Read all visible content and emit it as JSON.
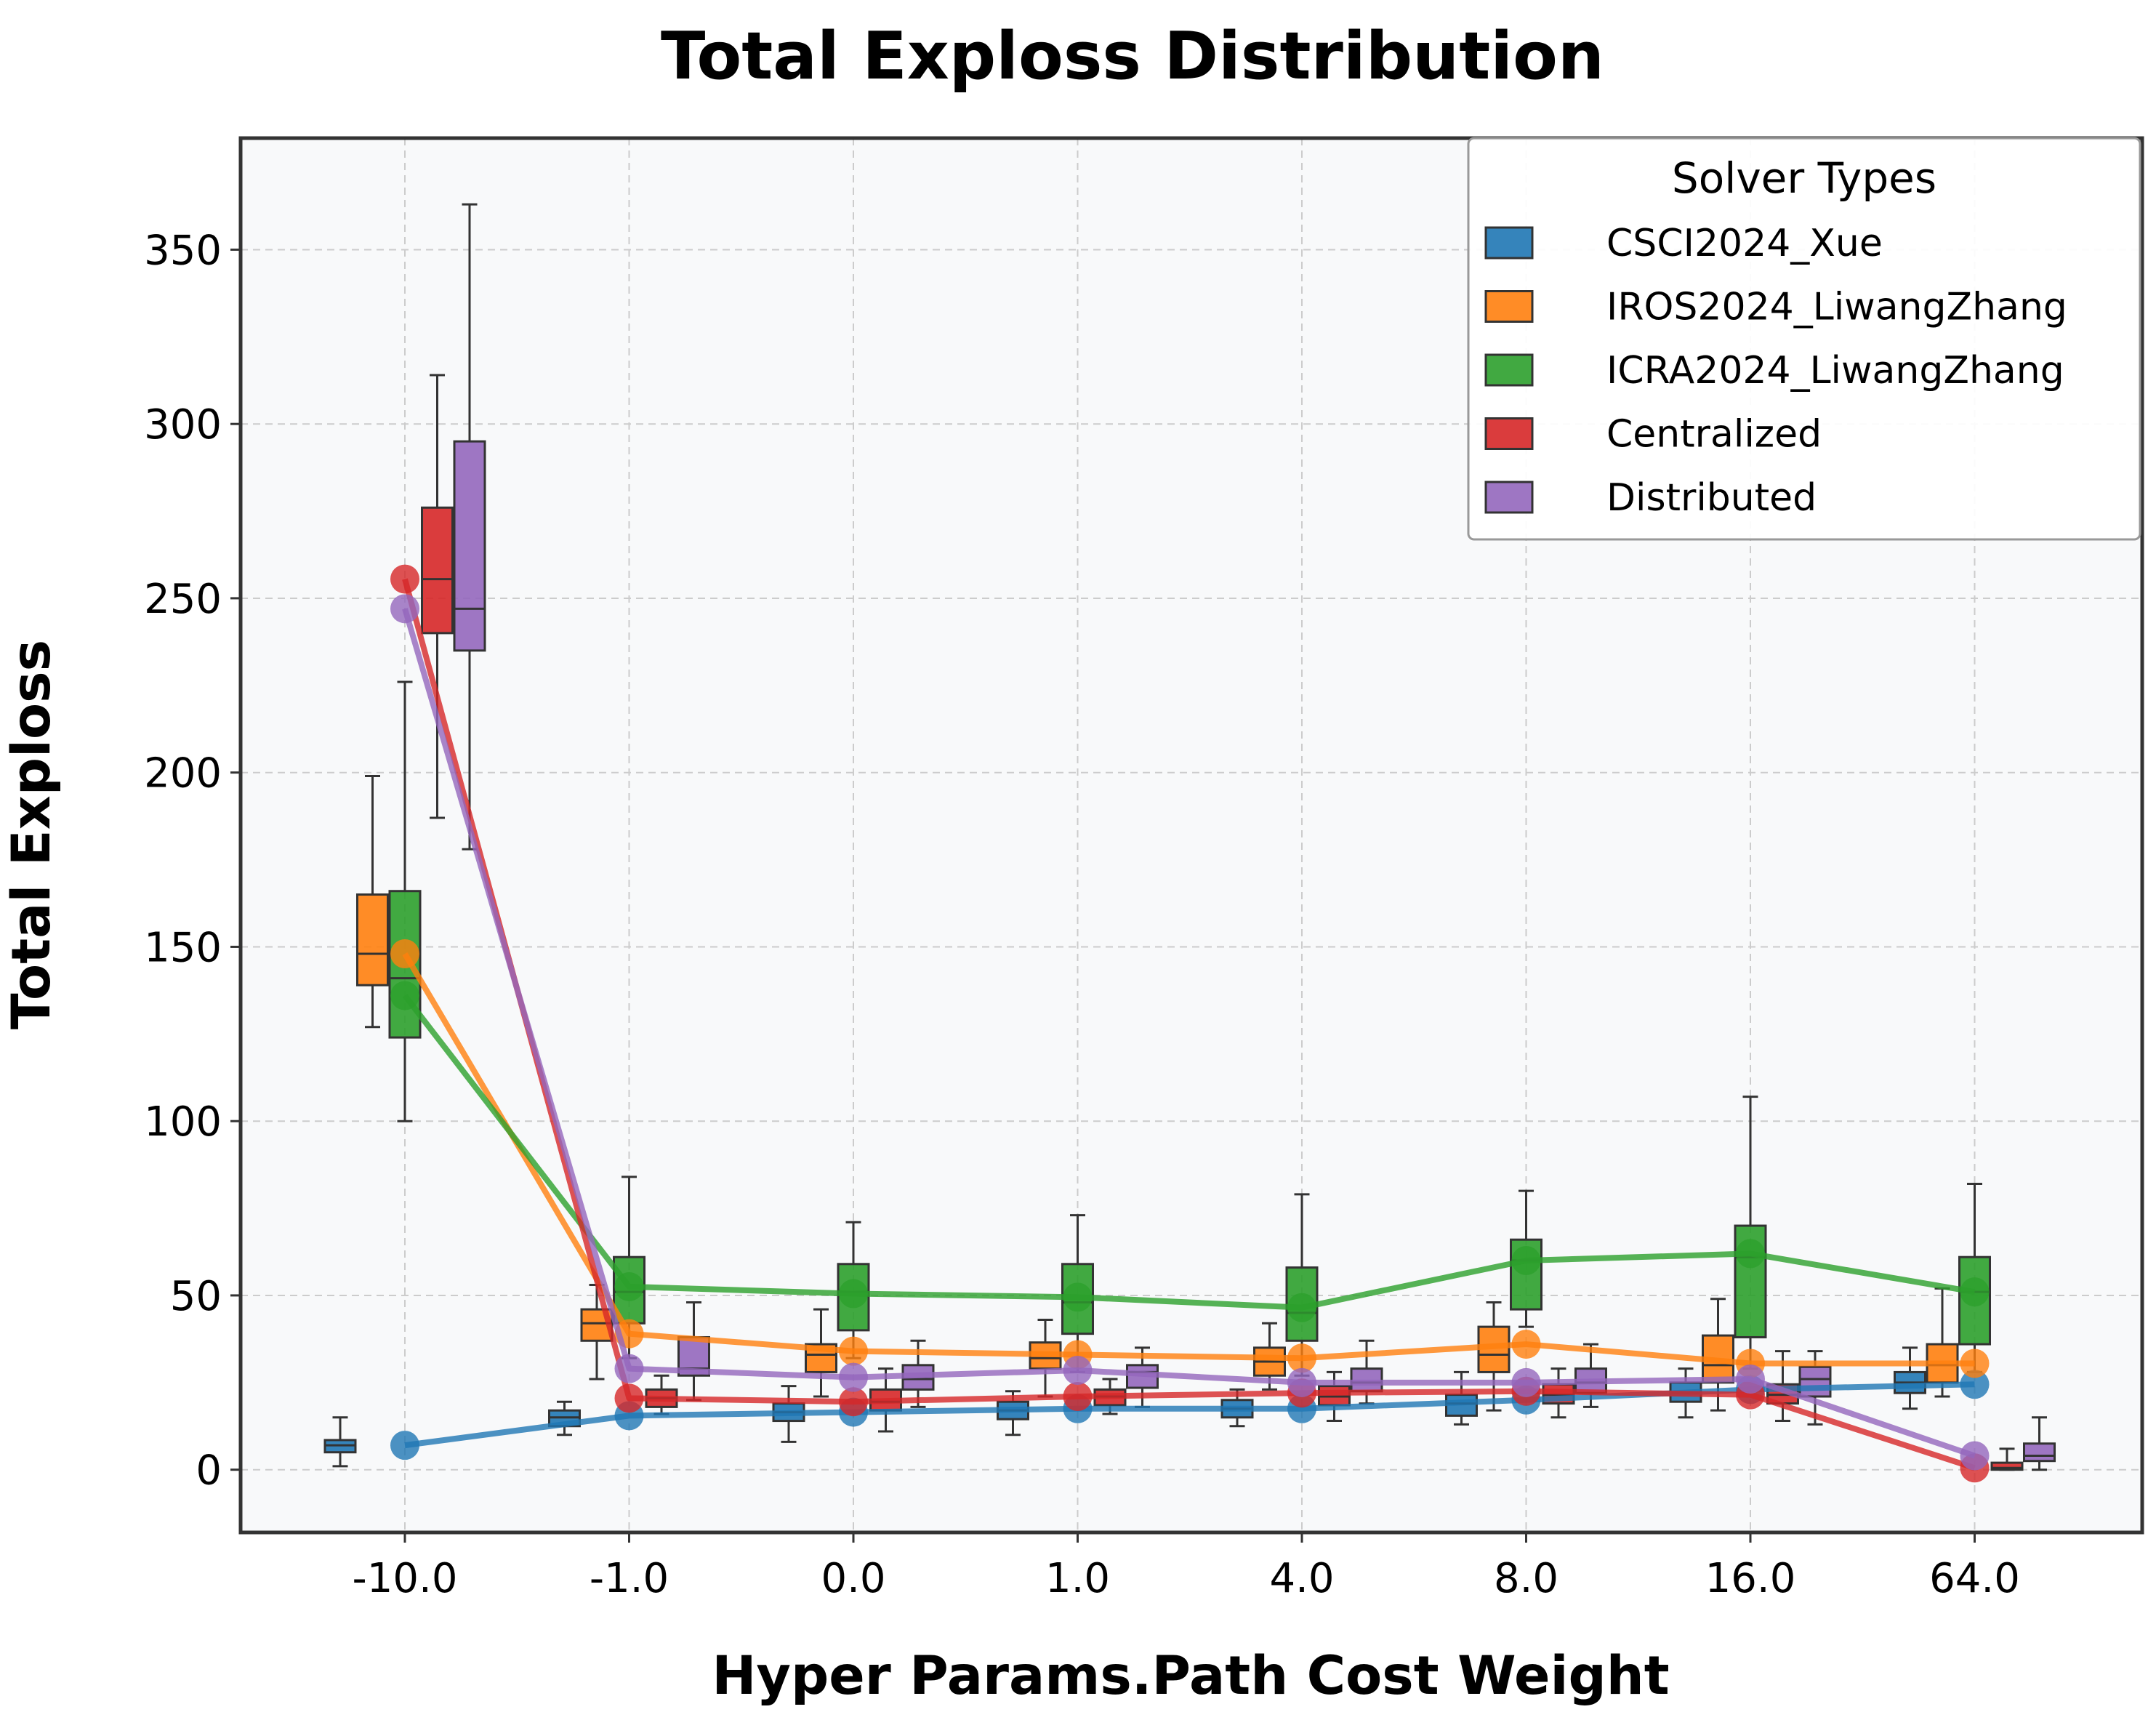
{
  "chart_data": {
    "type": "box",
    "title": "Total Exploss Distribution",
    "xlabel": "Hyper Params.Path Cost Weight",
    "ylabel": "Total Exploss",
    "categories": [
      "-10.0",
      "-1.0",
      "0.0",
      "1.0",
      "4.0",
      "8.0",
      "16.0",
      "64.0"
    ],
    "ylim": [
      -18,
      382
    ],
    "yticks": [
      "0",
      "50",
      "100",
      "150",
      "200",
      "250",
      "300",
      "350"
    ],
    "grid": true,
    "legend": {
      "title": "Solver Types",
      "position": "top-right"
    },
    "series": [
      {
        "name": "CSCI2024_Xue",
        "color": "#1f77b4",
        "means": [
          7,
          15.5,
          16.5,
          17.5,
          17.5,
          20,
          23,
          24.5
        ],
        "boxes": [
          [
            1,
            5,
            7,
            8.5,
            15
          ],
          [
            10,
            12.5,
            15,
            17,
            19.5
          ],
          [
            8,
            14,
            16.5,
            19,
            24
          ],
          [
            10,
            14.5,
            17,
            19.5,
            22.5
          ],
          [
            12.5,
            15,
            17.5,
            20,
            23
          ],
          [
            13,
            15.5,
            19,
            21.5,
            28
          ],
          [
            15,
            19.5,
            22,
            25,
            29
          ],
          [
            17.5,
            22,
            25,
            28,
            35
          ]
        ]
      },
      {
        "name": "IROS2024_LiwangZhang",
        "color": "#ff7f0e",
        "means": [
          148,
          39,
          34,
          33,
          32,
          36,
          30.5,
          30.5
        ],
        "boxes": [
          [
            127,
            139,
            148,
            165,
            199
          ],
          [
            26,
            37,
            42,
            46,
            53
          ],
          [
            21,
            28,
            33,
            36,
            46
          ],
          [
            21,
            29,
            32,
            36.5,
            43
          ],
          [
            23,
            27,
            31,
            35,
            42
          ],
          [
            17,
            28,
            33,
            41,
            48
          ],
          [
            17,
            25,
            30,
            38.5,
            49
          ],
          [
            21,
            25,
            30,
            36,
            52
          ]
        ]
      },
      {
        "name": "ICRA2024_LiwangZhang",
        "color": "#2ca02c",
        "means": [
          136,
          52.5,
          50.5,
          49.5,
          46.5,
          60,
          62,
          51
        ],
        "boxes": [
          [
            100,
            124,
            141,
            166,
            226
          ],
          [
            32,
            42,
            51,
            61,
            84
          ],
          [
            32,
            40,
            51,
            59,
            71
          ],
          [
            28,
            39,
            48,
            59,
            73
          ],
          [
            27,
            37,
            45,
            58,
            79
          ],
          [
            41,
            46,
            60,
            66,
            80
          ],
          [
            29,
            38,
            61,
            70,
            107
          ],
          [
            28,
            36,
            51,
            61,
            82
          ]
        ]
      },
      {
        "name": "Centralized",
        "color": "#d62728",
        "means": [
          255.5,
          20.5,
          19.5,
          21,
          22,
          22.5,
          21.5,
          0.5
        ],
        "boxes": [
          [
            187,
            240,
            255.5,
            276,
            314
          ],
          [
            16,
            18,
            20.5,
            23,
            27
          ],
          [
            11,
            17,
            19.5,
            23,
            29
          ],
          [
            16,
            18.5,
            21,
            23,
            26
          ],
          [
            14,
            18.5,
            21,
            24,
            28
          ],
          [
            15,
            19,
            21.5,
            24.5,
            29
          ],
          [
            14,
            19,
            21.5,
            24.5,
            34
          ],
          [
            0,
            0,
            0.5,
            2,
            6
          ]
        ]
      },
      {
        "name": "Distributed",
        "color": "#9467bd",
        "means": [
          247,
          29,
          26.5,
          28.5,
          25,
          25,
          26,
          4
        ],
        "boxes": [
          [
            178,
            235,
            247,
            295,
            363
          ],
          [
            20,
            27,
            29,
            38,
            48
          ],
          [
            18,
            23,
            26,
            30,
            37
          ],
          [
            18,
            23.5,
            28,
            30,
            35
          ],
          [
            19,
            22.5,
            25,
            29,
            37
          ],
          [
            18,
            22,
            25,
            29,
            36
          ],
          [
            13,
            21,
            26,
            29.5,
            34
          ],
          [
            0,
            2.5,
            4,
            7.5,
            15
          ]
        ]
      }
    ]
  }
}
